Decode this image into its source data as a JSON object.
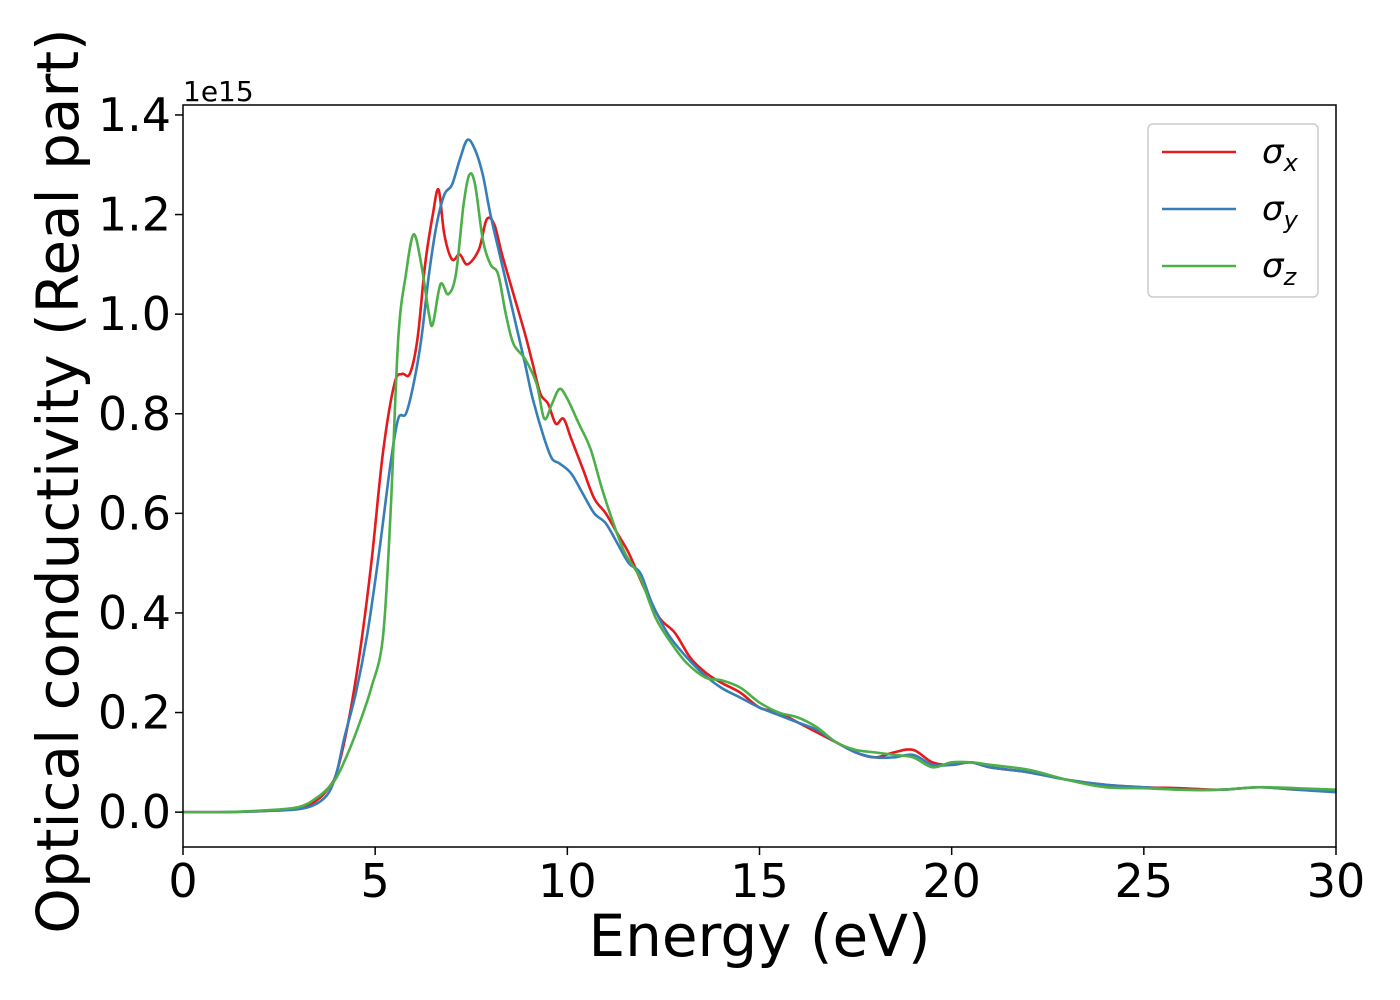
{
  "chart_data": {
    "type": "line",
    "title": "",
    "xlabel": "Energy (eV)",
    "ylabel": "Optical conductivity (Real part)",
    "y_offset_label": "1e15",
    "y_scale_exponent": 15,
    "xlim": [
      0,
      30
    ],
    "ylim": [
      -0.07,
      1.42
    ],
    "x_ticks": [
      0,
      5,
      10,
      15,
      20,
      25,
      30
    ],
    "x_tick_labels": [
      "0",
      "5",
      "10",
      "15",
      "20",
      "25",
      "30"
    ],
    "y_ticks": [
      0.0,
      0.2,
      0.4,
      0.6,
      0.8,
      1.0,
      1.2,
      1.4
    ],
    "y_tick_labels": [
      "0.0",
      "0.2",
      "0.4",
      "0.6",
      "0.8",
      "1.0",
      "1.2",
      "1.4"
    ],
    "grid": false,
    "legend_position": "top-right",
    "series": [
      {
        "name": "σx",
        "legend_symbol": "σ",
        "legend_subscript": "x",
        "color": "#e41a1c",
        "points": [
          [
            0,
            0.0
          ],
          [
            1,
            0.0
          ],
          [
            2,
            0.002
          ],
          [
            3,
            0.008
          ],
          [
            3.5,
            0.025
          ],
          [
            3.8,
            0.05
          ],
          [
            4.0,
            0.08
          ],
          [
            4.3,
            0.18
          ],
          [
            4.6,
            0.32
          ],
          [
            4.9,
            0.5
          ],
          [
            5.2,
            0.72
          ],
          [
            5.5,
            0.86
          ],
          [
            5.7,
            0.88
          ],
          [
            5.9,
            0.88
          ],
          [
            6.1,
            0.95
          ],
          [
            6.3,
            1.1
          ],
          [
            6.5,
            1.2
          ],
          [
            6.65,
            1.25
          ],
          [
            6.8,
            1.16
          ],
          [
            7.0,
            1.11
          ],
          [
            7.2,
            1.12
          ],
          [
            7.4,
            1.1
          ],
          [
            7.7,
            1.13
          ],
          [
            7.9,
            1.19
          ],
          [
            8.1,
            1.18
          ],
          [
            8.3,
            1.12
          ],
          [
            8.6,
            1.04
          ],
          [
            8.9,
            0.96
          ],
          [
            9.1,
            0.9
          ],
          [
            9.3,
            0.84
          ],
          [
            9.5,
            0.82
          ],
          [
            9.7,
            0.78
          ],
          [
            9.9,
            0.79
          ],
          [
            10.1,
            0.75
          ],
          [
            10.4,
            0.69
          ],
          [
            10.7,
            0.63
          ],
          [
            11.0,
            0.6
          ],
          [
            11.3,
            0.56
          ],
          [
            11.6,
            0.52
          ],
          [
            12.0,
            0.45
          ],
          [
            12.4,
            0.39
          ],
          [
            12.8,
            0.36
          ],
          [
            13.2,
            0.31
          ],
          [
            13.6,
            0.28
          ],
          [
            14.0,
            0.26
          ],
          [
            14.5,
            0.24
          ],
          [
            15.0,
            0.21
          ],
          [
            15.5,
            0.2
          ],
          [
            16.0,
            0.18
          ],
          [
            16.5,
            0.16
          ],
          [
            17.0,
            0.14
          ],
          [
            17.5,
            0.12
          ],
          [
            18.0,
            0.11
          ],
          [
            18.5,
            0.12
          ],
          [
            19.0,
            0.125
          ],
          [
            19.5,
            0.1
          ],
          [
            20.0,
            0.095
          ],
          [
            20.5,
            0.1
          ],
          [
            21.0,
            0.09
          ],
          [
            22.0,
            0.08
          ],
          [
            23.0,
            0.065
          ],
          [
            24.0,
            0.055
          ],
          [
            25.0,
            0.05
          ],
          [
            26.0,
            0.048
          ],
          [
            27.0,
            0.045
          ],
          [
            28.0,
            0.05
          ],
          [
            29.0,
            0.045
          ],
          [
            30.0,
            0.042
          ]
        ]
      },
      {
        "name": "σy",
        "legend_symbol": "σ",
        "legend_subscript": "y",
        "color": "#377eb8",
        "points": [
          [
            0,
            0.0
          ],
          [
            1,
            0.0
          ],
          [
            2,
            0.002
          ],
          [
            3,
            0.006
          ],
          [
            3.5,
            0.018
          ],
          [
            3.8,
            0.04
          ],
          [
            4.0,
            0.08
          ],
          [
            4.2,
            0.15
          ],
          [
            4.5,
            0.24
          ],
          [
            4.8,
            0.36
          ],
          [
            5.1,
            0.52
          ],
          [
            5.4,
            0.7
          ],
          [
            5.6,
            0.79
          ],
          [
            5.8,
            0.8
          ],
          [
            6.0,
            0.86
          ],
          [
            6.2,
            0.95
          ],
          [
            6.4,
            1.08
          ],
          [
            6.6,
            1.18
          ],
          [
            6.8,
            1.24
          ],
          [
            7.0,
            1.26
          ],
          [
            7.2,
            1.31
          ],
          [
            7.4,
            1.35
          ],
          [
            7.6,
            1.33
          ],
          [
            7.8,
            1.28
          ],
          [
            8.0,
            1.2
          ],
          [
            8.3,
            1.1
          ],
          [
            8.6,
            1.0
          ],
          [
            8.9,
            0.9
          ],
          [
            9.1,
            0.83
          ],
          [
            9.4,
            0.75
          ],
          [
            9.6,
            0.71
          ],
          [
            9.8,
            0.7
          ],
          [
            10.1,
            0.68
          ],
          [
            10.4,
            0.64
          ],
          [
            10.7,
            0.6
          ],
          [
            11.0,
            0.58
          ],
          [
            11.3,
            0.54
          ],
          [
            11.6,
            0.5
          ],
          [
            11.9,
            0.48
          ],
          [
            12.2,
            0.42
          ],
          [
            12.6,
            0.36
          ],
          [
            13.0,
            0.32
          ],
          [
            13.5,
            0.28
          ],
          [
            14.0,
            0.25
          ],
          [
            14.5,
            0.23
          ],
          [
            15.0,
            0.21
          ],
          [
            15.5,
            0.195
          ],
          [
            16.0,
            0.18
          ],
          [
            16.5,
            0.165
          ],
          [
            17.0,
            0.14
          ],
          [
            17.5,
            0.12
          ],
          [
            18.0,
            0.11
          ],
          [
            18.5,
            0.11
          ],
          [
            19.0,
            0.115
          ],
          [
            19.5,
            0.095
          ],
          [
            20.0,
            0.095
          ],
          [
            20.5,
            0.1
          ],
          [
            21.0,
            0.09
          ],
          [
            22.0,
            0.08
          ],
          [
            23.0,
            0.065
          ],
          [
            24.0,
            0.055
          ],
          [
            25.0,
            0.05
          ],
          [
            26.0,
            0.045
          ],
          [
            27.0,
            0.045
          ],
          [
            28.0,
            0.05
          ],
          [
            29.0,
            0.045
          ],
          [
            30.0,
            0.04
          ]
        ]
      },
      {
        "name": "σz",
        "legend_symbol": "σ",
        "legend_subscript": "z",
        "color": "#4daf4a",
        "points": [
          [
            0,
            0.0
          ],
          [
            1,
            0.0
          ],
          [
            2,
            0.003
          ],
          [
            3,
            0.01
          ],
          [
            3.5,
            0.03
          ],
          [
            3.8,
            0.05
          ],
          [
            4.0,
            0.07
          ],
          [
            4.3,
            0.12
          ],
          [
            4.6,
            0.18
          ],
          [
            4.9,
            0.25
          ],
          [
            5.2,
            0.35
          ],
          [
            5.4,
            0.6
          ],
          [
            5.6,
            0.95
          ],
          [
            5.8,
            1.08
          ],
          [
            6.0,
            1.16
          ],
          [
            6.2,
            1.1
          ],
          [
            6.4,
            1.0
          ],
          [
            6.5,
            0.98
          ],
          [
            6.7,
            1.06
          ],
          [
            6.9,
            1.04
          ],
          [
            7.1,
            1.08
          ],
          [
            7.3,
            1.22
          ],
          [
            7.45,
            1.28
          ],
          [
            7.6,
            1.26
          ],
          [
            7.8,
            1.15
          ],
          [
            8.0,
            1.1
          ],
          [
            8.2,
            1.08
          ],
          [
            8.4,
            1.0
          ],
          [
            8.6,
            0.94
          ],
          [
            8.9,
            0.91
          ],
          [
            9.2,
            0.86
          ],
          [
            9.4,
            0.79
          ],
          [
            9.6,
            0.82
          ],
          [
            9.8,
            0.85
          ],
          [
            10.0,
            0.83
          ],
          [
            10.3,
            0.78
          ],
          [
            10.6,
            0.73
          ],
          [
            10.9,
            0.65
          ],
          [
            11.2,
            0.58
          ],
          [
            11.5,
            0.52
          ],
          [
            11.9,
            0.47
          ],
          [
            12.3,
            0.39
          ],
          [
            12.7,
            0.34
          ],
          [
            13.1,
            0.3
          ],
          [
            13.6,
            0.27
          ],
          [
            14.0,
            0.265
          ],
          [
            14.5,
            0.25
          ],
          [
            15.0,
            0.22
          ],
          [
            15.5,
            0.2
          ],
          [
            16.0,
            0.19
          ],
          [
            16.5,
            0.17
          ],
          [
            17.0,
            0.14
          ],
          [
            17.5,
            0.125
          ],
          [
            18.0,
            0.12
          ],
          [
            18.5,
            0.115
          ],
          [
            19.0,
            0.11
          ],
          [
            19.5,
            0.09
          ],
          [
            20.0,
            0.1
          ],
          [
            20.5,
            0.1
          ],
          [
            21.0,
            0.095
          ],
          [
            22.0,
            0.085
          ],
          [
            23.0,
            0.065
          ],
          [
            24.0,
            0.05
          ],
          [
            25.0,
            0.048
          ],
          [
            26.0,
            0.045
          ],
          [
            27.0,
            0.045
          ],
          [
            28.0,
            0.05
          ],
          [
            29.0,
            0.048
          ],
          [
            30.0,
            0.045
          ]
        ]
      }
    ]
  }
}
